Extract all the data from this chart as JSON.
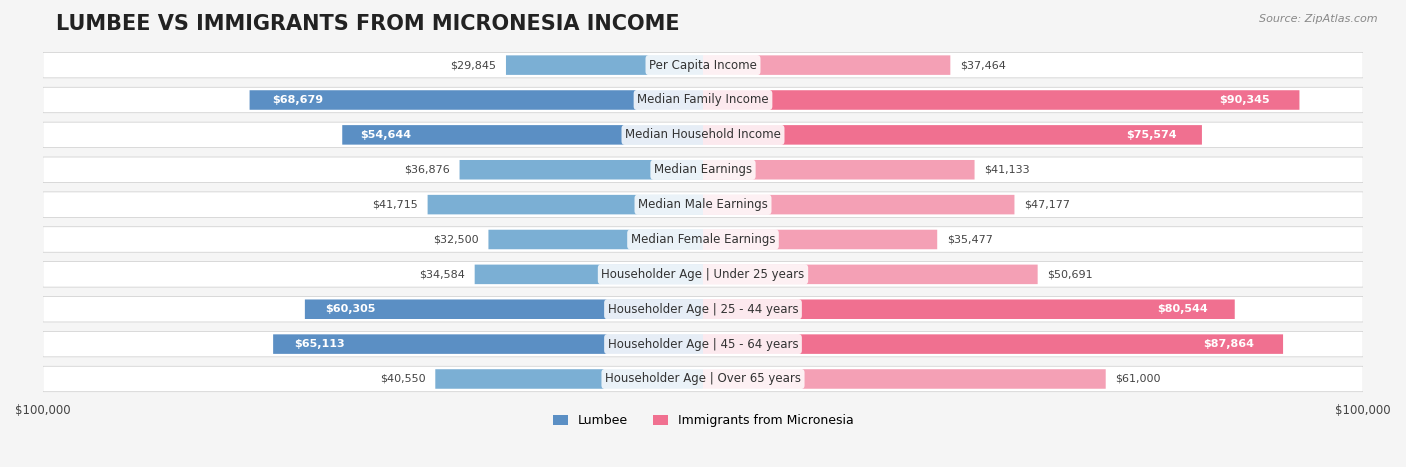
{
  "title": "LUMBEE VS IMMIGRANTS FROM MICRONESIA INCOME",
  "source": "Source: ZipAtlas.com",
  "categories": [
    "Per Capita Income",
    "Median Family Income",
    "Median Household Income",
    "Median Earnings",
    "Median Male Earnings",
    "Median Female Earnings",
    "Householder Age | Under 25 years",
    "Householder Age | 25 - 44 years",
    "Householder Age | 45 - 64 years",
    "Householder Age | Over 65 years"
  ],
  "lumbee_values": [
    29845,
    68679,
    54644,
    36876,
    41715,
    32500,
    34584,
    60305,
    65113,
    40550
  ],
  "micronesia_values": [
    37464,
    90345,
    75574,
    41133,
    47177,
    35477,
    50691,
    80544,
    87864,
    61000
  ],
  "lumbee_labels": [
    "$29,845",
    "$68,679",
    "$54,644",
    "$36,876",
    "$41,715",
    "$32,500",
    "$34,584",
    "$60,305",
    "$65,113",
    "$40,550"
  ],
  "micronesia_labels": [
    "$37,464",
    "$90,345",
    "$75,574",
    "$41,133",
    "$47,177",
    "$35,477",
    "$50,691",
    "$80,544",
    "$87,864",
    "$61,000"
  ],
  "lumbee_color": "#7bafd4",
  "micronesia_color": "#f4a0b5",
  "lumbee_color_strong": "#5b8fc4",
  "micronesia_color_strong": "#f07090",
  "max_value": 100000,
  "xlabel_left": "$100,000",
  "xlabel_right": "$100,000",
  "legend_lumbee": "Lumbee",
  "legend_micronesia": "Immigrants from Micronesia",
  "bg_color": "#f5f5f5",
  "row_bg_color": "#ffffff",
  "title_fontsize": 15,
  "label_fontsize": 9
}
